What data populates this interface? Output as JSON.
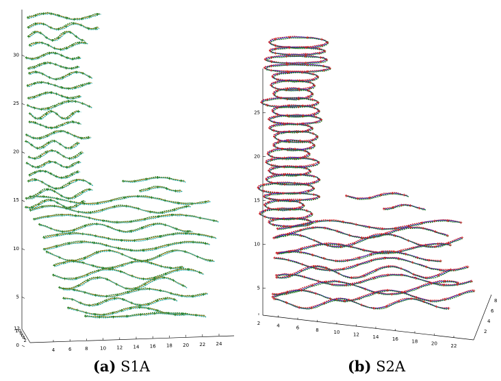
{
  "chart_data": [
    {
      "type": "3d-scatter",
      "id": "a",
      "caption_prefix": "(a)",
      "caption_label": "S1A",
      "z_ticks": [
        "0",
        "5",
        "10",
        "15",
        "20",
        "25",
        "30"
      ],
      "x_ticks": [
        "4",
        "6",
        "8",
        "10",
        "12",
        "14",
        "16",
        "18",
        "20",
        "22",
        "24"
      ],
      "y_ticks": [
        "2",
        "4",
        "6",
        "8",
        "10",
        "12"
      ],
      "zlim": [
        0,
        33
      ],
      "xlim": [
        3,
        24.5
      ],
      "series_colors": [
        "#1e7a1e",
        "#c8862a",
        "#22b2b2"
      ],
      "series_marker": "+",
      "upright_slices": 20,
      "base_slices": 13
    },
    {
      "type": "3d-scatter",
      "id": "b",
      "caption_prefix": "(b)",
      "caption_label": "S2A",
      "z_ticks": [
        "5",
        "10",
        "15",
        "20",
        "25"
      ],
      "x_ticks": [
        "2",
        "4",
        "6",
        "8",
        "10",
        "12",
        "14",
        "16",
        "18",
        "20",
        "22"
      ],
      "y_ticks": [
        "2",
        "4",
        "6",
        "8"
      ],
      "zlim": [
        3,
        28
      ],
      "xlim": [
        2,
        22.5
      ],
      "series_colors": [
        "#cc2222",
        "#2222cc",
        "#1e7a1e"
      ],
      "series_marker": "+",
      "upright_slices": 22,
      "base_slices": 11
    }
  ]
}
